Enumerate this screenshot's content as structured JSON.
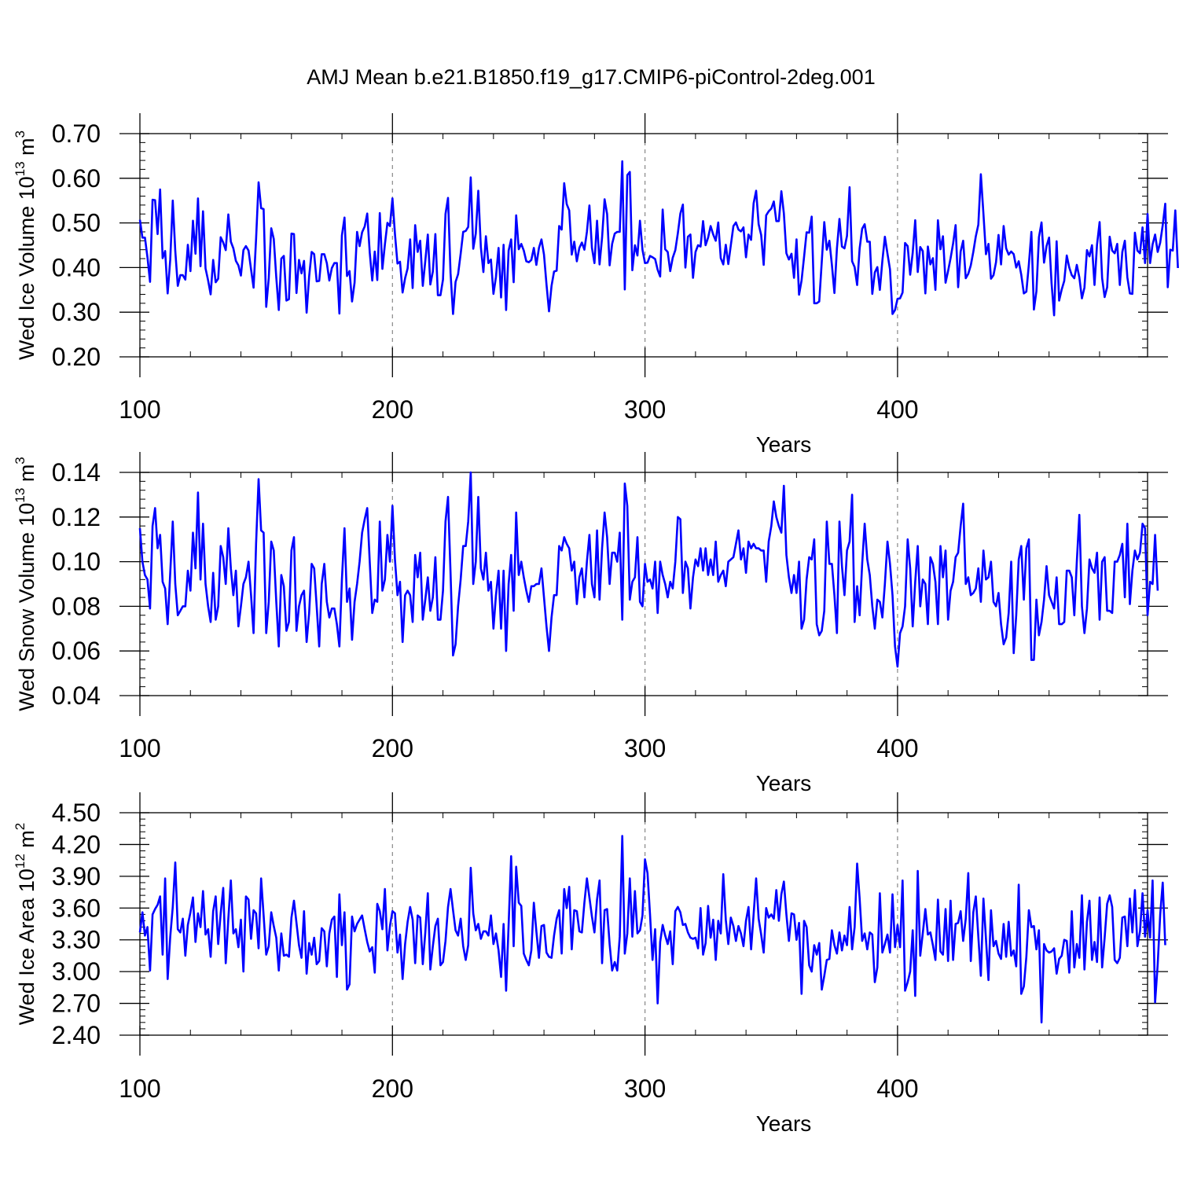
{
  "chart_data": [
    {
      "type": "line",
      "title": "AMJ Mean b.e21.B1850.f19_g17.CMIP6-piControl-2deg.001",
      "ylabel": {
        "text": "Wed Ice Volume 10",
        "exp": "13",
        "unit": " m",
        "unit_exp": "3"
      },
      "xlabel": "Years",
      "xlim": [
        100,
        499
      ],
      "ylim": [
        0.2,
        0.7
      ],
      "xticks": [
        "100",
        "200",
        "300",
        "400"
      ],
      "yticks": [
        "0.20",
        "0.30",
        "0.40",
        "0.50",
        "0.60",
        "0.70"
      ],
      "vgrid_at": [
        200,
        300,
        400
      ],
      "color": "#0000ff",
      "x_start": 100,
      "values": [
        0.507,
        0.467,
        0.467,
        0.423,
        0.368,
        0.552,
        0.551,
        0.475,
        0.575,
        0.421,
        0.437,
        0.342,
        0.418,
        0.55,
        0.437,
        0.359,
        0.383,
        0.383,
        0.373,
        0.451,
        0.392,
        0.505,
        0.431,
        0.555,
        0.403,
        0.526,
        0.398,
        0.371,
        0.34,
        0.417,
        0.367,
        0.375,
        0.468,
        0.456,
        0.439,
        0.519,
        0.458,
        0.443,
        0.415,
        0.405,
        0.382,
        0.439,
        0.448,
        0.438,
        0.396,
        0.355,
        0.464,
        0.591,
        0.533,
        0.531,
        0.312,
        0.376,
        0.488,
        0.464,
        0.378,
        0.305,
        0.42,
        0.426,
        0.326,
        0.329,
        0.476,
        0.475,
        0.343,
        0.417,
        0.387,
        0.415,
        0.299,
        0.38,
        0.435,
        0.43,
        0.369,
        0.37,
        0.43,
        0.43,
        0.41,
        0.371,
        0.399,
        0.41,
        0.41,
        0.297,
        0.472,
        0.512,
        0.381,
        0.392,
        0.324,
        0.366,
        0.48,
        0.448,
        0.479,
        0.492,
        0.521,
        0.434,
        0.371,
        0.436,
        0.372,
        0.522,
        0.397,
        0.452,
        0.5,
        0.493,
        0.555,
        0.475,
        0.409,
        0.413,
        0.344,
        0.376,
        0.398,
        0.463,
        0.354,
        0.495,
        0.435,
        0.46,
        0.359,
        0.415,
        0.474,
        0.362,
        0.391,
        0.475,
        0.338,
        0.338,
        0.373,
        0.52,
        0.556,
        0.388,
        0.296,
        0.368,
        0.385,
        0.431,
        0.48,
        0.482,
        0.491,
        0.602,
        0.442,
        0.476,
        0.572,
        0.445,
        0.39,
        0.47,
        0.41,
        0.418,
        0.341,
        0.379,
        0.444,
        0.333,
        0.451,
        0.305,
        0.438,
        0.463,
        0.367,
        0.517,
        0.441,
        0.453,
        0.438,
        0.414,
        0.412,
        0.417,
        0.444,
        0.406,
        0.444,
        0.463,
        0.429,
        0.362,
        0.302,
        0.359,
        0.391,
        0.393,
        0.493,
        0.485,
        0.589,
        0.542,
        0.528,
        0.429,
        0.458,
        0.414,
        0.444,
        0.456,
        0.44,
        0.48,
        0.539,
        0.444,
        0.41,
        0.505,
        0.407,
        0.467,
        0.553,
        0.52,
        0.405,
        0.453,
        0.476,
        0.48,
        0.48,
        0.638,
        0.351,
        0.607,
        0.614,
        0.394,
        0.45,
        0.427,
        0.505,
        0.44,
        0.41,
        0.411,
        0.426,
        0.423,
        0.419,
        0.395,
        0.38,
        0.53,
        0.441,
        0.435,
        0.392,
        0.422,
        0.439,
        0.477,
        0.521,
        0.541,
        0.4,
        0.469,
        0.474,
        0.377,
        0.435,
        0.45,
        0.447,
        0.504,
        0.45,
        0.467,
        0.493,
        0.474,
        0.46,
        0.501,
        0.421,
        0.407,
        0.451,
        0.408,
        0.45,
        0.493,
        0.501,
        0.485,
        0.481,
        0.49,
        0.423,
        0.474,
        0.462,
        0.544,
        0.572,
        0.497,
        0.473,
        0.406,
        0.517,
        0.526,
        0.532,
        0.548,
        0.504,
        0.504,
        0.571,
        0.521,
        0.432,
        0.418,
        0.431,
        0.377,
        0.463,
        0.339,
        0.371,
        0.424,
        0.479,
        0.478,
        0.514,
        0.32,
        0.32,
        0.324,
        0.413,
        0.502,
        0.44,
        0.46,
        0.406,
        0.343,
        0.443,
        0.509,
        0.447,
        0.443,
        0.471,
        0.58,
        0.414,
        0.401,
        0.361,
        0.443,
        0.487,
        0.497,
        0.458,
        0.458,
        0.341,
        0.389,
        0.401,
        0.35,
        0.415,
        0.469,
        0.431,
        0.396,
        0.296,
        0.305,
        0.33,
        0.331,
        0.344,
        0.455,
        0.448,
        0.384,
        0.433,
        0.506,
        0.39,
        0.446,
        0.437,
        0.342,
        0.447,
        0.407,
        0.421,
        0.35,
        0.506,
        0.441,
        0.47,
        0.366,
        0.392,
        0.421,
        0.454,
        0.495,
        0.356,
        0.436,
        0.46,
        0.376,
        0.386,
        0.405,
        0.435,
        0.47,
        0.496,
        0.609,
        0.52,
        0.43,
        0.453,
        0.375,
        0.383,
        0.412,
        0.473,
        0.407,
        0.493,
        0.443,
        0.429,
        0.436,
        0.43,
        0.4,
        0.414,
        0.384,
        0.342,
        0.346,
        0.407,
        0.48,
        0.306,
        0.347,
        0.468,
        0.501,
        0.411,
        0.448,
        0.467,
        0.364,
        0.293,
        0.459,
        0.326,
        0.351,
        0.37,
        0.427,
        0.4,
        0.383,
        0.376,
        0.406,
        0.378,
        0.331,
        0.355,
        0.439,
        0.425,
        0.45,
        0.361,
        0.451,
        0.502,
        0.376,
        0.334,
        0.356,
        0.469,
        0.438,
        0.432,
        0.453,
        0.361,
        0.435,
        0.46,
        0.378,
        0.342,
        0.341,
        0.478,
        0.438,
        0.432,
        0.49,
        0.41,
        0.52,
        0.41,
        0.452,
        0.474,
        0.435,
        0.456,
        0.495,
        0.543,
        0.356,
        0.44,
        0.438,
        0.528,
        0.399
      ]
    },
    {
      "type": "line",
      "ylabel": {
        "text": "Wed Snow Volume 10",
        "exp": "13",
        "unit": " m",
        "unit_exp": "3"
      },
      "xlabel": "Years",
      "xlim": [
        100,
        499
      ],
      "ylim": [
        0.04,
        0.14
      ],
      "xticks": [
        "100",
        "200",
        "300",
        "400"
      ],
      "yticks": [
        "0.04",
        "0.06",
        "0.08",
        "0.10",
        "0.12",
        "0.14"
      ],
      "vgrid_at": [
        200,
        300,
        400
      ],
      "color": "#0000ff",
      "x_start": 100,
      "values": [
        0.115,
        0.1,
        0.094,
        0.092,
        0.079,
        0.116,
        0.124,
        0.106,
        0.112,
        0.091,
        0.088,
        0.072,
        0.095,
        0.118,
        0.09,
        0.076,
        0.078,
        0.08,
        0.08,
        0.096,
        0.087,
        0.113,
        0.097,
        0.131,
        0.092,
        0.117,
        0.09,
        0.08,
        0.073,
        0.095,
        0.074,
        0.08,
        0.107,
        0.102,
        0.09,
        0.115,
        0.097,
        0.085,
        0.096,
        0.071,
        0.08,
        0.09,
        0.093,
        0.1,
        0.085,
        0.068,
        0.108,
        0.137,
        0.114,
        0.113,
        0.068,
        0.082,
        0.109,
        0.105,
        0.082,
        0.062,
        0.094,
        0.089,
        0.069,
        0.073,
        0.105,
        0.111,
        0.069,
        0.08,
        0.085,
        0.087,
        0.064,
        0.077,
        0.099,
        0.097,
        0.08,
        0.062,
        0.09,
        0.099,
        0.082,
        0.075,
        0.079,
        0.079,
        0.072,
        0.062,
        0.092,
        0.115,
        0.082,
        0.088,
        0.065,
        0.082,
        0.09,
        0.1,
        0.113,
        0.119,
        0.124,
        0.1,
        0.077,
        0.083,
        0.082,
        0.118,
        0.087,
        0.092,
        0.112,
        0.1,
        0.125,
        0.101,
        0.085,
        0.091,
        0.064,
        0.085,
        0.087,
        0.085,
        0.073,
        0.103,
        0.093,
        0.104,
        0.074,
        0.083,
        0.093,
        0.078,
        0.084,
        0.102,
        0.074,
        0.074,
        0.087,
        0.118,
        0.129,
        0.095,
        0.058,
        0.063,
        0.08,
        0.092,
        0.107,
        0.107,
        0.118,
        0.14,
        0.09,
        0.1,
        0.129,
        0.097,
        0.092,
        0.104,
        0.087,
        0.091,
        0.07,
        0.085,
        0.096,
        0.07,
        0.096,
        0.06,
        0.09,
        0.103,
        0.078,
        0.122,
        0.094,
        0.1,
        0.093,
        0.087,
        0.082,
        0.089,
        0.089,
        0.09,
        0.09,
        0.097,
        0.084,
        0.071,
        0.06,
        0.075,
        0.085,
        0.085,
        0.107,
        0.105,
        0.111,
        0.108,
        0.106,
        0.096,
        0.1,
        0.081,
        0.093,
        0.097,
        0.084,
        0.1,
        0.112,
        0.09,
        0.084,
        0.114,
        0.083,
        0.106,
        0.122,
        0.111,
        0.09,
        0.104,
        0.104,
        0.1,
        0.113,
        0.074,
        0.135,
        0.125,
        0.083,
        0.091,
        0.093,
        0.111,
        0.082,
        0.08,
        0.099,
        0.091,
        0.092,
        0.088,
        0.1,
        0.077,
        0.1,
        0.094,
        0.09,
        0.084,
        0.091,
        0.088,
        0.1,
        0.12,
        0.119,
        0.086,
        0.1,
        0.097,
        0.079,
        0.093,
        0.101,
        0.098,
        0.106,
        0.096,
        0.106,
        0.094,
        0.101,
        0.094,
        0.109,
        0.091,
        0.094,
        0.096,
        0.089,
        0.1,
        0.101,
        0.102,
        0.108,
        0.114,
        0.101,
        0.106,
        0.095,
        0.109,
        0.106,
        0.108,
        0.106,
        0.106,
        0.105,
        0.105,
        0.091,
        0.109,
        0.116,
        0.127,
        0.12,
        0.116,
        0.113,
        0.134,
        0.103,
        0.093,
        0.086,
        0.094,
        0.086,
        0.1,
        0.07,
        0.074,
        0.092,
        0.102,
        0.101,
        0.11,
        0.072,
        0.067,
        0.069,
        0.078,
        0.118,
        0.099,
        0.099,
        0.085,
        0.068,
        0.118,
        0.098,
        0.085,
        0.105,
        0.109,
        0.13,
        0.073,
        0.089,
        0.076,
        0.099,
        0.117,
        0.101,
        0.094,
        0.08,
        0.07,
        0.083,
        0.082,
        0.075,
        0.09,
        0.109,
        0.099,
        0.085,
        0.062,
        0.053,
        0.068,
        0.071,
        0.08,
        0.11,
        0.097,
        0.071,
        0.091,
        0.107,
        0.08,
        0.092,
        0.09,
        0.072,
        0.102,
        0.099,
        0.091,
        0.072,
        0.107,
        0.093,
        0.105,
        0.074,
        0.087,
        0.091,
        0.102,
        0.104,
        0.116,
        0.126,
        0.09,
        0.093,
        0.085,
        0.086,
        0.088,
        0.097,
        0.082,
        0.105,
        0.092,
        0.093,
        0.1,
        0.082,
        0.08,
        0.086,
        0.072,
        0.063,
        0.066,
        0.077,
        0.1,
        0.059,
        0.076,
        0.101,
        0.107,
        0.083,
        0.106,
        0.11,
        0.056,
        0.056,
        0.083,
        0.067,
        0.073,
        0.083,
        0.098,
        0.085,
        0.082,
        0.079,
        0.093,
        0.072,
        0.072,
        0.073,
        0.096,
        0.096,
        0.093,
        0.076,
        0.1,
        0.121,
        0.08,
        0.068,
        0.079,
        0.101,
        0.097,
        0.095,
        0.104,
        0.074,
        0.1,
        0.102,
        0.078,
        0.078,
        0.077,
        0.1,
        0.1,
        0.103,
        0.108,
        0.084,
        0.117,
        0.081,
        0.096,
        0.105,
        0.101,
        0.104,
        0.117,
        0.115,
        0.076,
        0.091,
        0.09,
        0.112,
        0.087
      ]
    },
    {
      "type": "line",
      "ylabel": {
        "text": "Wed Ice Area 10",
        "exp": "12",
        "unit": " m",
        "unit_exp": "2"
      },
      "xlabel": "Years",
      "xlim": [
        100,
        499
      ],
      "ylim": [
        2.4,
        4.5
      ],
      "xticks": [
        "100",
        "200",
        "300",
        "400"
      ],
      "yticks": [
        "2.40",
        "2.70",
        "3.00",
        "3.30",
        "3.60",
        "3.90",
        "4.20",
        "4.50"
      ],
      "vgrid_at": [
        200,
        300,
        400
      ],
      "color": "#0000ff",
      "x_start": 100,
      "values": [
        3.37,
        3.56,
        3.34,
        3.42,
        3.01,
        3.54,
        3.59,
        3.63,
        3.71,
        3.16,
        3.88,
        2.93,
        3.33,
        3.61,
        4.03,
        3.4,
        3.37,
        3.5,
        3.15,
        3.44,
        3.56,
        3.7,
        3.28,
        3.55,
        3.42,
        3.76,
        3.35,
        3.4,
        3.14,
        3.57,
        3.71,
        3.26,
        3.55,
        3.79,
        3.08,
        3.5,
        3.86,
        3.36,
        3.4,
        3.23,
        3.49,
        3.0,
        3.71,
        3.68,
        3.31,
        3.58,
        3.55,
        3.22,
        3.88,
        3.53,
        3.16,
        3.24,
        3.56,
        3.43,
        3.32,
        3.01,
        3.36,
        3.15,
        3.16,
        3.14,
        3.51,
        3.67,
        3.46,
        3.25,
        3.13,
        3.57,
        2.98,
        3.27,
        3.16,
        3.32,
        3.07,
        3.1,
        3.41,
        3.38,
        3.05,
        3.36,
        3.49,
        3.52,
        2.95,
        3.73,
        3.25,
        3.56,
        2.83,
        2.88,
        3.52,
        3.38,
        3.45,
        3.49,
        3.53,
        3.4,
        3.28,
        3.19,
        3.23,
        2.99,
        3.64,
        3.57,
        3.4,
        3.78,
        3.2,
        3.43,
        3.57,
        3.55,
        3.18,
        3.35,
        2.93,
        3.26,
        3.47,
        3.61,
        3.49,
        3.08,
        3.53,
        3.51,
        3.07,
        3.37,
        3.74,
        3.02,
        3.24,
        3.43,
        3.5,
        3.06,
        3.09,
        3.29,
        3.61,
        3.78,
        3.58,
        3.39,
        3.34,
        3.5,
        3.24,
        3.11,
        3.25,
        3.98,
        3.55,
        3.39,
        3.45,
        3.31,
        3.38,
        3.38,
        3.34,
        3.53,
        3.26,
        3.36,
        3.2,
        2.95,
        3.45,
        2.82,
        3.44,
        4.09,
        3.24,
        3.99,
        3.65,
        3.62,
        3.17,
        3.11,
        3.06,
        3.2,
        3.65,
        3.38,
        3.13,
        3.43,
        3.44,
        3.18,
        3.14,
        3.13,
        3.34,
        3.5,
        3.58,
        3.17,
        3.78,
        3.6,
        3.8,
        3.21,
        3.58,
        3.57,
        3.38,
        3.37,
        3.65,
        3.88,
        3.7,
        3.52,
        3.37,
        3.68,
        3.86,
        3.08,
        3.58,
        3.59,
        3.26,
        3.01,
        3.09,
        3.01,
        3.33,
        4.28,
        3.17,
        3.36,
        3.88,
        3.33,
        3.76,
        3.36,
        3.39,
        3.53,
        4.06,
        3.93,
        3.54,
        3.11,
        3.4,
        2.7,
        3.28,
        3.44,
        3.34,
        3.26,
        3.38,
        3.07,
        3.57,
        3.61,
        3.56,
        3.44,
        3.45,
        3.37,
        3.32,
        3.31,
        3.32,
        3.22,
        3.6,
        3.16,
        3.27,
        3.62,
        3.32,
        3.49,
        3.11,
        3.48,
        3.36,
        3.92,
        3.49,
        3.26,
        3.51,
        3.43,
        3.29,
        3.43,
        3.36,
        3.24,
        3.48,
        3.61,
        3.21,
        3.54,
        3.88,
        3.5,
        3.35,
        3.18,
        3.6,
        3.51,
        3.54,
        3.5,
        3.77,
        3.48,
        3.73,
        3.85,
        3.54,
        3.29,
        3.55,
        3.54,
        3.3,
        3.46,
        2.79,
        3.48,
        3.42,
        3.06,
        3.0,
        3.25,
        3.16,
        3.27,
        2.83,
        2.96,
        3.11,
        3.12,
        3.39,
        3.25,
        3.17,
        3.37,
        3.2,
        3.34,
        3.25,
        3.61,
        3.21,
        3.42,
        4.02,
        3.69,
        3.29,
        3.36,
        3.21,
        3.37,
        3.35,
        2.9,
        3.04,
        3.74,
        3.18,
        3.26,
        3.35,
        3.18,
        3.73,
        3.23,
        3.44,
        3.23,
        3.86,
        2.82,
        2.9,
        3.0,
        3.39,
        2.77,
        3.95,
        3.15,
        3.36,
        3.59,
        3.35,
        3.37,
        3.25,
        3.11,
        3.68,
        3.19,
        3.16,
        3.59,
        3.1,
        3.67,
        3.11,
        3.45,
        3.46,
        3.57,
        3.29,
        3.5,
        3.93,
        3.1,
        3.56,
        3.71,
        3.33,
        2.96,
        3.69,
        3.31,
        2.92,
        3.58,
        3.24,
        3.29,
        3.17,
        3.12,
        3.45,
        3.14,
        3.47,
        3.15,
        3.2,
        3.05,
        3.82,
        2.79,
        2.86,
        3.14,
        3.58,
        3.42,
        3.43,
        3.21,
        3.39,
        2.52,
        3.26,
        3.2,
        3.18,
        3.19,
        3.22,
        2.98,
        3.12,
        3.15,
        3.3,
        3.29,
        2.99,
        3.57,
        3.04,
        3.26,
        3.13,
        3.72,
        3.02,
        3.47,
        3.67,
        3.11,
        3.28,
        3.09,
        3.7,
        3.04,
        3.32,
        3.64,
        3.72,
        3.61,
        3.11,
        3.08,
        3.13,
        3.51,
        3.52,
        3.24,
        3.69,
        3.37,
        3.77,
        3.24,
        3.38,
        3.74,
        3.33,
        3.58,
        3.32,
        3.86,
        2.71,
        3.07,
        3.54,
        3.84,
        3.25
      ]
    }
  ]
}
